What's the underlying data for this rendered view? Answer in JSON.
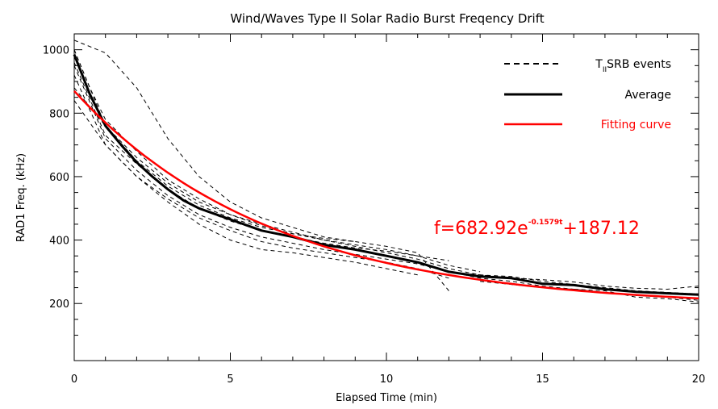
{
  "chart_data": {
    "type": "line",
    "title": "Wind/Waves Type II Solar Radio Burst Freqency Drift",
    "xlabel": "Elapsed Time (min)",
    "ylabel": "RAD1 Freq. (kHz)",
    "xlim": [
      0,
      20
    ],
    "ylim": [
      20,
      1050
    ],
    "xticks": [
      0,
      5,
      10,
      15,
      20
    ],
    "yticks": [
      200,
      400,
      600,
      800,
      1000
    ],
    "legend_position": "top-right",
    "legend": [
      {
        "label_main": "T",
        "label_sub": "II",
        "label_rest": "SRB events",
        "style": "dashed",
        "color": "#000000"
      },
      {
        "label_main": "Average",
        "style": "thick-solid",
        "color": "#000000"
      },
      {
        "label_main": "Fitting curve",
        "style": "solid",
        "color": "#ff0000"
      }
    ],
    "annotation": {
      "base": "f=682.92e",
      "exponent": "-0.1579t",
      "tail": "+187.12",
      "color": "#ff0000"
    },
    "fit_params": {
      "a": 682.92,
      "b": 0.1579,
      "c": 187.12
    },
    "average": {
      "x": [
        0,
        0.5,
        1,
        1.5,
        2,
        2.5,
        3,
        3.5,
        4,
        5,
        6,
        7,
        8,
        9,
        10,
        11,
        12,
        13,
        14,
        15,
        16,
        17,
        18,
        19,
        20
      ],
      "y": [
        985,
        860,
        760,
        700,
        645,
        600,
        560,
        525,
        500,
        465,
        430,
        410,
        385,
        370,
        350,
        330,
        300,
        285,
        280,
        262,
        258,
        245,
        237,
        232,
        228
      ]
    },
    "events": [
      {
        "x": [
          0,
          0.5,
          1,
          2,
          3,
          4,
          5,
          6,
          7,
          8,
          9
        ],
        "y": [
          1030,
          1010,
          990,
          880,
          720,
          600,
          520,
          470,
          440,
          410,
          395
        ]
      },
      {
        "x": [
          0,
          0.5,
          1,
          2,
          3,
          4,
          5,
          6,
          7,
          8,
          9,
          10,
          11,
          12
        ],
        "y": [
          1000,
          880,
          780,
          680,
          590,
          530,
          480,
          445,
          420,
          400,
          385,
          370,
          350,
          335
        ]
      },
      {
        "x": [
          0,
          1,
          2,
          3,
          4,
          5,
          6,
          7,
          8,
          9,
          10,
          11,
          12,
          13
        ],
        "y": [
          960,
          730,
          640,
          560,
          500,
          460,
          430,
          410,
          390,
          375,
          365,
          350,
          320,
          300
        ]
      },
      {
        "x": [
          0,
          1,
          2,
          3,
          4,
          5,
          6,
          7,
          8,
          9,
          10,
          11,
          12
        ],
        "y": [
          920,
          700,
          600,
          530,
          470,
          430,
          395,
          375,
          360,
          345,
          330,
          310,
          280
        ]
      },
      {
        "x": [
          0,
          1,
          2,
          3,
          4,
          5,
          6,
          7,
          8,
          9,
          10,
          11,
          12
        ],
        "y": [
          880,
          760,
          650,
          570,
          510,
          470,
          440,
          420,
          405,
          395,
          380,
          360,
          240
        ]
      },
      {
        "x": [
          0,
          1,
          2,
          3,
          4,
          5,
          6,
          7,
          8,
          9,
          10,
          11
        ],
        "y": [
          840,
          700,
          600,
          520,
          450,
          400,
          370,
          360,
          345,
          330,
          310,
          290
        ]
      },
      {
        "x": [
          0,
          1,
          2,
          3,
          4,
          5,
          6,
          7,
          8,
          9,
          10,
          11,
          12,
          13,
          14,
          15,
          16,
          17,
          18,
          19,
          20
        ],
        "y": [
          1000,
          760,
          660,
          580,
          520,
          480,
          450,
          425,
          400,
          380,
          360,
          340,
          310,
          290,
          285,
          270,
          260,
          250,
          240,
          235,
          230
        ]
      },
      {
        "x": [
          0,
          1,
          2,
          3,
          4,
          5,
          6,
          7,
          8,
          9,
          10,
          11,
          12,
          13,
          14,
          15,
          16,
          17,
          18,
          19,
          20
        ],
        "y": [
          950,
          720,
          620,
          540,
          480,
          440,
          410,
          390,
          370,
          355,
          340,
          325,
          300,
          280,
          270,
          255,
          245,
          235,
          225,
          220,
          210
        ]
      },
      {
        "x": [
          12,
          13,
          14,
          15,
          16,
          17,
          18,
          19,
          20
        ],
        "y": [
          300,
          290,
          280,
          275,
          268,
          255,
          248,
          245,
          255
        ]
      },
      {
        "x": [
          13,
          14,
          15,
          16,
          17,
          18,
          19,
          20
        ],
        "y": [
          270,
          260,
          250,
          245,
          240,
          220,
          215,
          205
        ]
      }
    ]
  }
}
